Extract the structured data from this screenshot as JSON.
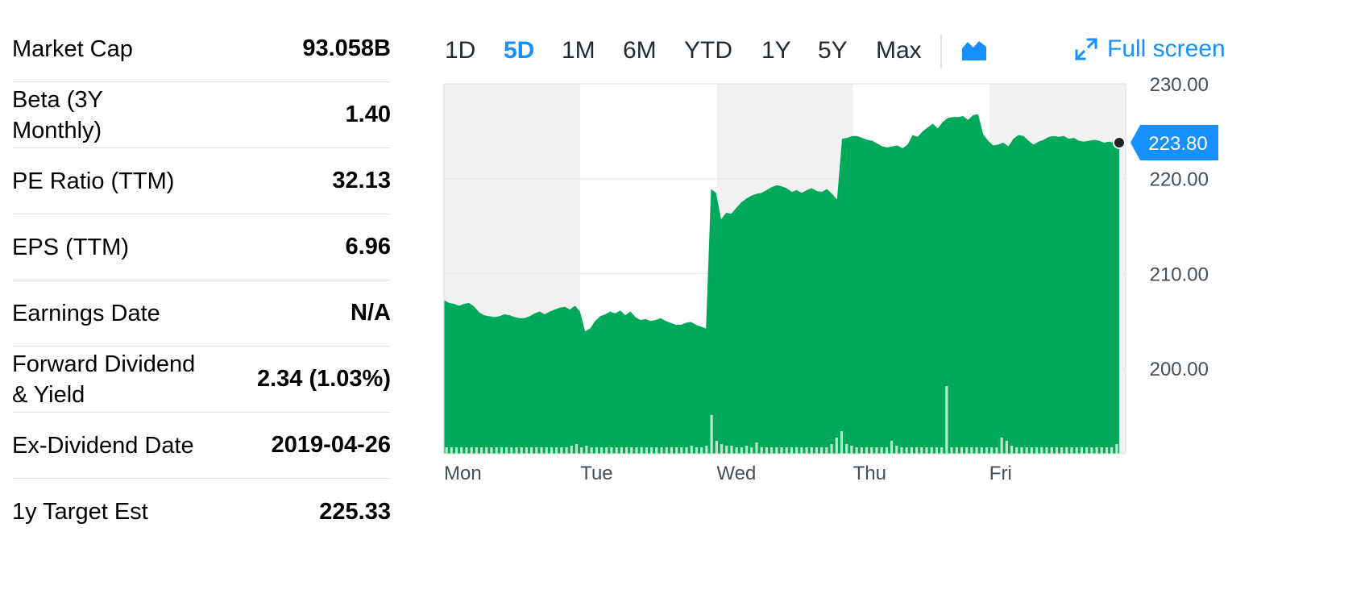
{
  "stats": [
    {
      "label": "Market Cap",
      "value": "93.058B"
    },
    {
      "label": "Beta (3Y Monthly)",
      "value": "1.40"
    },
    {
      "label": "PE Ratio (TTM)",
      "value": "32.13"
    },
    {
      "label": "EPS (TTM)",
      "value": "6.96"
    },
    {
      "label": "Earnings Date",
      "value": "N/A"
    },
    {
      "label": "Forward Dividend & Yield",
      "value": "2.34 (1.03%)"
    },
    {
      "label": "Ex-Dividend Date",
      "value": "2019-04-26"
    },
    {
      "label": "1y Target Est",
      "value": "225.33"
    }
  ],
  "range_buttons": [
    "1D",
    "5D",
    "1M",
    "6M",
    "YTD",
    "1Y",
    "5Y",
    "Max"
  ],
  "active_range": "5D",
  "chart_type_icon": "area-chart-icon",
  "fullscreen": {
    "label": "Full screen",
    "icon": "expand-icon"
  },
  "colors": {
    "accent": "#188fff",
    "area_fill": "#00a85a",
    "volume": "#b9e9cd",
    "band_shade": "#f2f2f2"
  },
  "chart_data": {
    "type": "area",
    "title": "",
    "xlabel": "",
    "ylabel": "",
    "ylim": [
      191,
      230
    ],
    "y_ticks": [
      "230.00",
      "220.00",
      "210.00",
      "200.00"
    ],
    "x_ticks": [
      "Mon",
      "Tue",
      "Wed",
      "Thu",
      "Fri"
    ],
    "current_price": "223.80",
    "series": [
      {
        "values": [
          207.2,
          206.9,
          206.8,
          206.6,
          206.8,
          206.9,
          206.5,
          205.9,
          205.6,
          205.5,
          205.4,
          205.5,
          205.7,
          205.6,
          205.4,
          205.3,
          205.3,
          205.5,
          205.8,
          206.0,
          205.7,
          206.0,
          206.2,
          206.4,
          206.5,
          206.2,
          206.6,
          206.0,
          203.9,
          204.2,
          205.0,
          205.5,
          205.7,
          206.0,
          205.8,
          206.1,
          205.6,
          206.0,
          205.4,
          205.1,
          205.2,
          205.0,
          205.1,
          205.3,
          205.0,
          204.8,
          204.6,
          204.6,
          204.8,
          204.9,
          204.6,
          204.4,
          204.2,
          218.9,
          218.5,
          215.7,
          216.4,
          216.3,
          216.9,
          217.5,
          217.9,
          218.2,
          218.4,
          218.5,
          218.8,
          219.1,
          219.3,
          219.2,
          219.0,
          218.6,
          218.8,
          218.5,
          218.8,
          219.0,
          218.7,
          218.6,
          218.9,
          218.4,
          217.8,
          224.2,
          224.3,
          224.5,
          224.5,
          224.3,
          224.1,
          224.0,
          223.7,
          223.4,
          223.3,
          223.4,
          223.5,
          223.2,
          223.6,
          224.6,
          224.4,
          225.0,
          225.4,
          225.8,
          225.3,
          226.0,
          226.4,
          226.5,
          226.5,
          226.6,
          226.2,
          226.7,
          226.8,
          224.7,
          224.0,
          223.5,
          223.6,
          223.8,
          223.4,
          224.2,
          224.6,
          224.5,
          224.0,
          223.6,
          223.9,
          224.1,
          224.4,
          224.5,
          224.4,
          224.5,
          224.2,
          224.3,
          224.0,
          223.9,
          224.0,
          224.1,
          224.0,
          223.8,
          223.9,
          223.8,
          223.8
        ]
      }
    ],
    "volume": [
      2,
      2,
      2,
      2,
      2,
      2,
      2,
      2,
      2,
      2,
      2,
      2,
      2,
      2,
      2,
      2,
      2,
      2,
      2,
      2,
      2,
      2,
      2,
      2,
      2,
      2.5,
      3,
      2,
      2.5,
      2,
      2,
      2,
      2,
      2,
      2,
      2,
      2,
      2,
      2,
      2,
      2,
      2,
      2,
      2,
      2,
      2,
      2,
      2,
      2,
      2.5,
      2,
      2,
      2.5,
      12,
      4,
      3,
      2.5,
      2.5,
      2,
      2,
      2.5,
      2,
      3.5,
      2,
      2,
      2,
      2,
      2,
      2,
      2,
      2,
      2,
      2,
      2,
      2,
      2,
      2,
      3,
      5,
      7,
      3,
      2.5,
      2,
      2,
      2,
      2,
      2,
      2,
      2,
      4,
      2.5,
      2,
      2,
      2,
      2,
      2,
      2,
      2,
      2,
      2,
      21,
      2,
      2,
      2,
      2,
      2,
      2,
      2,
      2,
      2,
      2,
      5,
      4,
      2.5,
      2,
      2,
      2,
      2,
      2,
      2,
      2,
      2,
      2,
      2,
      2,
      2,
      2,
      2,
      2,
      2,
      2,
      2,
      2,
      2,
      3
    ],
    "current_marker_value": 223.8
  }
}
